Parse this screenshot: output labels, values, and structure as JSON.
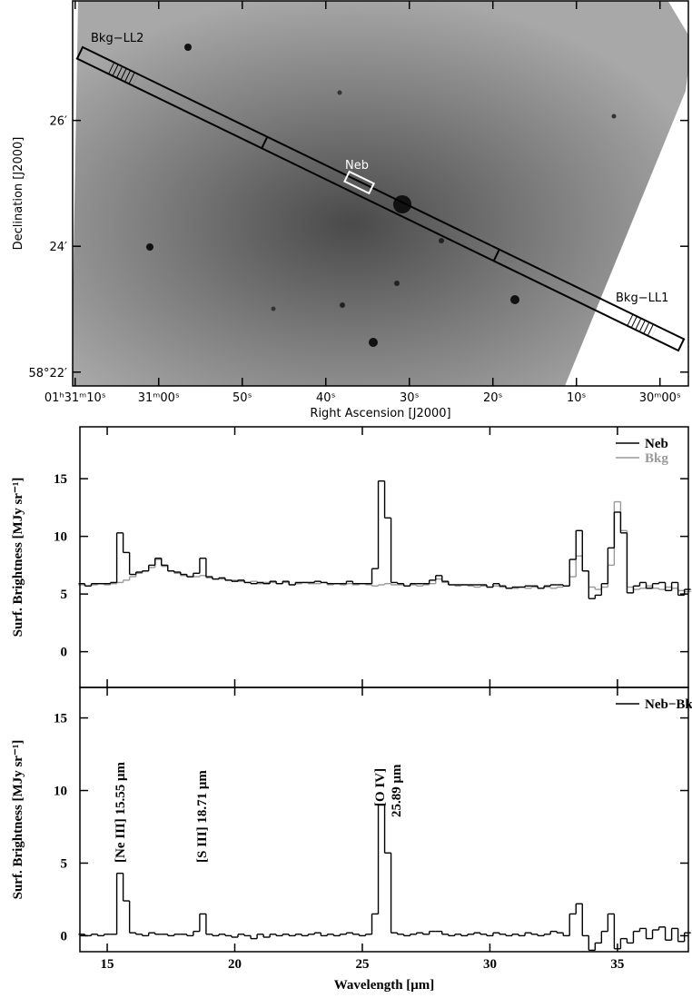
{
  "chart_data": [
    {
      "type": "image",
      "xlabel": "Right Ascension [J2000]",
      "ylabel": "Declination [J2000]",
      "xlim": [
        70.3,
        -3.4
      ],
      "ylim": [
        21.78,
        27.9
      ],
      "xticks": [
        {
          "value": 70,
          "label": "01ʰ31ᵐ10ˢ"
        },
        {
          "value": 60,
          "label": "31ᵐ00ˢ"
        },
        {
          "value": 50,
          "label": "50ˢ"
        },
        {
          "value": 40,
          "label": "40ˢ"
        },
        {
          "value": 30,
          "label": "30ˢ"
        },
        {
          "value": 20,
          "label": "20ˢ"
        },
        {
          "value": 10,
          "label": "10ˢ"
        },
        {
          "value": 0,
          "label": "30ᵐ00ˢ"
        }
      ],
      "yticks": [
        {
          "value": 22,
          "label": "58°22′"
        },
        {
          "value": 24,
          "label": "24′"
        },
        {
          "value": 26,
          "label": "26′"
        }
      ],
      "annotations": [
        "Bkg−LL2",
        "Neb",
        "Bkg−LL1"
      ]
    },
    {
      "type": "step",
      "ylabel": "Surf. Brightness [MJy sr⁻¹]",
      "xlim": [
        13.93,
        37.78
      ],
      "ylim": [
        -3.1,
        19.5
      ],
      "yticks": [
        0,
        5,
        10,
        15
      ],
      "legend": "upper right",
      "x": [
        14.0,
        14.25,
        14.5,
        14.75,
        15.0,
        15.25,
        15.5,
        15.75,
        16.0,
        16.25,
        16.5,
        16.75,
        17.0,
        17.25,
        17.5,
        17.75,
        18.0,
        18.25,
        18.5,
        18.75,
        19.0,
        19.25,
        19.5,
        19.75,
        20.0,
        20.25,
        20.5,
        20.75,
        21.0,
        21.25,
        21.5,
        21.75,
        22.0,
        22.25,
        22.5,
        22.75,
        23.0,
        23.25,
        23.5,
        23.75,
        24.0,
        24.25,
        24.5,
        24.75,
        25.0,
        25.25,
        25.5,
        25.75,
        26.0,
        26.25,
        26.5,
        26.75,
        27.0,
        27.25,
        27.5,
        27.75,
        28.0,
        28.25,
        28.5,
        28.75,
        29.0,
        29.25,
        29.5,
        29.75,
        30.0,
        30.25,
        30.5,
        30.75,
        31.0,
        31.25,
        31.5,
        31.75,
        32.0,
        32.25,
        32.5,
        32.75,
        33.0,
        33.25,
        33.5,
        33.75,
        34.0,
        34.25,
        34.5,
        34.75,
        35.0,
        35.25,
        35.5,
        35.75,
        36.0,
        36.25,
        36.5,
        36.75,
        37.0,
        37.25,
        37.5,
        37.75
      ],
      "series": [
        {
          "name": "Neb",
          "color": "#000000",
          "values": [
            5.9,
            5.7,
            5.9,
            5.9,
            5.9,
            6.0,
            10.3,
            8.6,
            6.7,
            6.9,
            7.0,
            7.5,
            8.1,
            7.5,
            7.0,
            6.9,
            6.7,
            6.5,
            6.8,
            8.1,
            6.5,
            6.3,
            6.4,
            6.2,
            6.1,
            6.2,
            6.0,
            5.9,
            6.0,
            5.9,
            6.1,
            5.9,
            6.1,
            5.8,
            6.0,
            6.0,
            6.0,
            6.1,
            6.0,
            5.9,
            5.9,
            5.9,
            6.1,
            5.9,
            5.9,
            5.9,
            7.2,
            14.8,
            11.6,
            6.0,
            5.9,
            5.7,
            5.9,
            5.9,
            5.9,
            6.2,
            6.6,
            6.1,
            5.8,
            5.8,
            5.8,
            5.8,
            5.8,
            5.8,
            5.6,
            5.9,
            5.7,
            5.5,
            5.6,
            5.6,
            5.7,
            5.7,
            5.5,
            5.7,
            5.8,
            5.8,
            5.7,
            8.0,
            10.5,
            7.0,
            4.6,
            4.9,
            5.9,
            9.0,
            12.1,
            10.3,
            5.1,
            5.7,
            6.0,
            5.5,
            5.9,
            6.0,
            5.3,
            6.0,
            4.9,
            5.4
          ]
        },
        {
          "name": "Bkg",
          "color": "#999999",
          "values": [
            5.8,
            5.7,
            5.8,
            5.9,
            5.8,
            5.9,
            6.0,
            6.2,
            6.5,
            6.8,
            7.0,
            7.3,
            8.0,
            7.4,
            7.0,
            6.8,
            6.6,
            6.5,
            6.5,
            6.6,
            6.4,
            6.3,
            6.3,
            6.2,
            6.2,
            6.1,
            6.0,
            6.1,
            5.9,
            6.0,
            6.0,
            5.9,
            6.0,
            5.8,
            5.9,
            6.0,
            5.9,
            5.9,
            6.0,
            5.8,
            5.9,
            5.8,
            5.9,
            5.8,
            5.9,
            5.8,
            5.7,
            5.8,
            5.9,
            5.8,
            5.8,
            5.7,
            5.8,
            5.7,
            5.8,
            5.9,
            6.3,
            6.0,
            5.8,
            5.7,
            5.8,
            5.7,
            5.6,
            5.7,
            5.6,
            5.7,
            5.6,
            5.5,
            5.5,
            5.6,
            5.5,
            5.6,
            5.5,
            5.6,
            5.5,
            5.6,
            5.7,
            6.5,
            8.3,
            7.0,
            5.6,
            5.4,
            5.6,
            7.5,
            13.0,
            10.5,
            5.6,
            5.4,
            5.5,
            5.7,
            5.5,
            5.4,
            5.6,
            5.5,
            5.3,
            5.2
          ]
        }
      ]
    },
    {
      "type": "step",
      "ylabel": "Surf. Brightness [MJy sr⁻¹]",
      "xlabel": "Wavelength [μm]",
      "xlim": [
        13.93,
        37.78
      ],
      "ylim": [
        -1.1,
        17.1
      ],
      "yticks": [
        0,
        5,
        10,
        15
      ],
      "xticks": [
        15,
        20,
        25,
        30,
        35
      ],
      "legend": "upper right",
      "annotations": [
        "[Ne III] 15.55 μm",
        "[S III] 18.71 μm",
        "[O IV]",
        "25.89 μm"
      ],
      "x": [
        14.0,
        14.25,
        14.5,
        14.75,
        15.0,
        15.25,
        15.5,
        15.75,
        16.0,
        16.25,
        16.5,
        16.75,
        17.0,
        17.25,
        17.5,
        17.75,
        18.0,
        18.25,
        18.5,
        18.75,
        19.0,
        19.25,
        19.5,
        19.75,
        20.0,
        20.25,
        20.5,
        20.75,
        21.0,
        21.25,
        21.5,
        21.75,
        22.0,
        22.25,
        22.5,
        22.75,
        23.0,
        23.25,
        23.5,
        23.75,
        24.0,
        24.25,
        24.5,
        24.75,
        25.0,
        25.25,
        25.5,
        25.75,
        26.0,
        26.25,
        26.5,
        26.75,
        27.0,
        27.25,
        27.5,
        27.75,
        28.0,
        28.25,
        28.5,
        28.75,
        29.0,
        29.25,
        29.5,
        29.75,
        30.0,
        30.25,
        30.5,
        30.75,
        31.0,
        31.25,
        31.5,
        31.75,
        32.0,
        32.25,
        32.5,
        32.75,
        33.0,
        33.25,
        33.5,
        33.75,
        34.0,
        34.25,
        34.5,
        34.75,
        35.0,
        35.25,
        35.5,
        35.75,
        36.0,
        36.25,
        36.5,
        36.75,
        37.0,
        37.25,
        37.5,
        37.75
      ],
      "series": [
        {
          "name": "Neb−Bkg",
          "color": "#000000",
          "values": [
            0.1,
            0.0,
            0.1,
            0.0,
            0.1,
            0.1,
            4.3,
            2.4,
            0.2,
            0.1,
            0.0,
            0.2,
            0.1,
            0.1,
            0.0,
            0.1,
            0.1,
            0.0,
            0.3,
            1.5,
            0.1,
            0.0,
            0.1,
            0.0,
            -0.1,
            0.1,
            0.0,
            -0.2,
            0.1,
            -0.1,
            0.1,
            0.0,
            0.1,
            0.0,
            0.1,
            0.0,
            0.1,
            0.2,
            0.0,
            0.1,
            0.0,
            0.1,
            0.2,
            0.1,
            0.0,
            0.1,
            1.5,
            9.0,
            5.7,
            0.2,
            0.1,
            0.0,
            0.1,
            0.2,
            0.1,
            0.3,
            0.3,
            0.1,
            0.0,
            0.1,
            0.0,
            0.1,
            0.2,
            0.1,
            0.0,
            0.2,
            0.1,
            0.0,
            0.1,
            0.0,
            0.2,
            0.1,
            0.0,
            0.1,
            0.3,
            0.2,
            0.0,
            1.5,
            2.2,
            0.0,
            -1.0,
            -0.5,
            0.3,
            1.5,
            -0.9,
            -0.2,
            -0.5,
            0.3,
            0.5,
            -0.2,
            0.4,
            0.6,
            -0.3,
            0.5,
            -0.4,
            0.2
          ]
        }
      ]
    }
  ]
}
